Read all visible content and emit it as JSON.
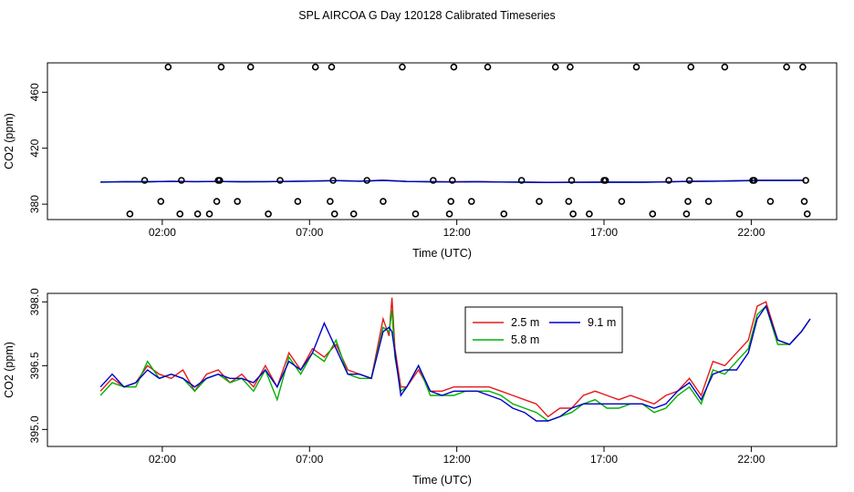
{
  "title": "SPL AIRCOA G  Day 120128  Calibrated Timeseries",
  "chart_data": [
    {
      "type": "line",
      "panel": "top",
      "xlabel": "Time (UTC)",
      "ylabel": "CO2 (ppm)",
      "xlim": [
        -1.9,
        24.9
      ],
      "ylim": [
        369,
        481
      ],
      "x_ticks": [
        2,
        7,
        12,
        17,
        22
      ],
      "x_tick_labels": [
        "02:00",
        "07:00",
        "12:00",
        "17:00",
        "22:00"
      ],
      "y_ticks": [
        380,
        420,
        460
      ],
      "y_tick_labels": [
        "380",
        "420",
        "460"
      ],
      "series": [
        {
          "name": "2.5 m",
          "color": "#e41a1c",
          "x": [
            -0.1,
            0.7,
            1.5,
            2.3,
            3.1,
            3.9,
            4.7,
            5.5,
            6.3,
            7.1,
            7.9,
            8.7,
            9.5,
            10.3,
            11.1,
            11.9,
            12.7,
            13.5,
            14.3,
            15.1,
            15.9,
            16.7,
            17.5,
            18.3,
            19.1,
            19.9,
            20.7,
            21.5,
            22.3,
            23.1,
            23.8
          ],
          "y": [
            395.8,
            396.1,
            396.0,
            396.4,
            396.2,
            396.3,
            396.1,
            396.2,
            396.3,
            396.6,
            396.9,
            396.5,
            397.2,
            396.3,
            396.1,
            396.0,
            396.2,
            395.9,
            395.8,
            395.6,
            395.7,
            395.8,
            395.9,
            395.8,
            396.0,
            396.4,
            396.5,
            396.8,
            397.0,
            397.1,
            397.0
          ]
        },
        {
          "name": "5.8 m",
          "color": "#00b000",
          "x": [
            -0.1,
            0.7,
            1.5,
            2.3,
            3.1,
            3.9,
            4.7,
            5.5,
            6.3,
            7.1,
            7.9,
            8.7,
            9.5,
            10.3,
            11.1,
            11.9,
            12.7,
            13.5,
            14.3,
            15.1,
            15.9,
            16.7,
            17.5,
            18.3,
            19.1,
            19.9,
            20.7,
            21.5,
            22.3,
            23.1,
            23.8
          ],
          "y": [
            395.7,
            396.0,
            396.0,
            396.3,
            396.1,
            396.2,
            396.0,
            396.1,
            396.2,
            396.5,
            396.8,
            396.4,
            397.0,
            396.2,
            396.0,
            395.9,
            396.0,
            395.8,
            395.7,
            395.5,
            395.6,
            395.7,
            395.7,
            395.7,
            395.9,
            396.3,
            396.4,
            396.7,
            396.9,
            397.0,
            397.0
          ]
        },
        {
          "name": "9.1 m",
          "color": "#0000cc",
          "x": [
            -0.1,
            0.7,
            1.5,
            2.3,
            3.1,
            3.9,
            4.7,
            5.5,
            6.3,
            7.1,
            7.9,
            8.7,
            9.5,
            10.3,
            11.1,
            11.9,
            12.7,
            13.5,
            14.3,
            15.1,
            15.9,
            16.7,
            17.5,
            18.3,
            19.1,
            19.9,
            20.7,
            21.5,
            22.3,
            23.1,
            23.8
          ],
          "y": [
            395.8,
            396.0,
            396.0,
            396.3,
            396.1,
            396.2,
            396.0,
            396.1,
            396.3,
            396.5,
            396.9,
            396.4,
            397.0,
            396.2,
            396.0,
            395.9,
            396.0,
            395.8,
            395.7,
            395.5,
            395.6,
            395.7,
            395.7,
            395.7,
            395.9,
            396.3,
            396.4,
            396.7,
            397.1,
            397.0,
            397.1
          ]
        }
      ],
      "markers": {
        "symbol": "open-circle",
        "x": [
          0.9,
          1.4,
          1.95,
          2.2,
          2.6,
          2.65,
          3.2,
          3.6,
          3.85,
          3.9,
          3.95,
          4.0,
          4.55,
          5.0,
          5.6,
          6.0,
          6.6,
          7.2,
          7.7,
          7.75,
          7.8,
          7.85,
          8.5,
          8.95,
          9.5,
          10.15,
          10.6,
          11.2,
          11.75,
          11.8,
          11.85,
          11.9,
          12.5,
          13.05,
          13.6,
          14.2,
          14.8,
          15.35,
          15.8,
          15.85,
          15.9,
          15.95,
          16.5,
          17.0,
          17.05,
          17.6,
          18.1,
          18.65,
          19.2,
          19.8,
          19.85,
          19.9,
          19.95,
          20.55,
          21.1,
          21.6,
          22.05,
          22.1,
          22.65,
          23.2,
          23.75,
          23.8,
          23.85,
          23.9
        ],
        "y": [
          373,
          397,
          382,
          478,
          373,
          397,
          373,
          373,
          382,
          397,
          397,
          478,
          382,
          478,
          373,
          397,
          382,
          478,
          382,
          478,
          397,
          373,
          373,
          397,
          382,
          478,
          373,
          397,
          373,
          382,
          397,
          478,
          382,
          478,
          373,
          397,
          382,
          478,
          382,
          478,
          397,
          373,
          373,
          397,
          397,
          382,
          478,
          373,
          397,
          373,
          382,
          397,
          478,
          382,
          478,
          373,
          397,
          397,
          382,
          478,
          478,
          382,
          397,
          373
        ]
      }
    },
    {
      "type": "line",
      "panel": "bottom",
      "xlabel": "Time (UTC)",
      "ylabel": "CO2 (ppm)",
      "xlim": [
        -1.9,
        24.9
      ],
      "ylim": [
        394.6,
        398.2
      ],
      "x_ticks": [
        2,
        7,
        12,
        17,
        22
      ],
      "x_tick_labels": [
        "02:00",
        "07:00",
        "12:00",
        "17:00",
        "22:00"
      ],
      "y_ticks": [
        395.0,
        396.5,
        398.0
      ],
      "y_tick_labels": [
        "395.0",
        "396.5",
        "398.0"
      ],
      "legend": {
        "placement": "top-center",
        "ncol": 2
      },
      "series": [
        {
          "name": "2.5 m",
          "color": "#e41a1c",
          "x": [
            -0.1,
            0.3,
            0.7,
            1.1,
            1.5,
            1.9,
            2.3,
            2.7,
            3.1,
            3.5,
            3.9,
            4.3,
            4.7,
            5.1,
            5.5,
            5.9,
            6.3,
            6.7,
            7.1,
            7.5,
            7.9,
            8.3,
            8.7,
            9.1,
            9.5,
            9.7,
            9.8,
            9.9,
            10.1,
            10.3,
            10.7,
            11.1,
            11.5,
            11.9,
            12.3,
            12.7,
            13.1,
            13.5,
            13.9,
            14.3,
            14.7,
            15.1,
            15.5,
            15.9,
            16.3,
            16.7,
            17.1,
            17.5,
            17.9,
            18.3,
            18.7,
            19.1,
            19.5,
            19.9,
            20.3,
            20.7,
            21.1,
            21.5,
            21.9,
            22.2,
            22.5,
            22.9,
            23.3,
            23.7,
            24.0
          ],
          "y": [
            395.9,
            396.2,
            396.0,
            396.1,
            396.5,
            396.3,
            396.2,
            396.4,
            395.9,
            396.3,
            396.4,
            396.1,
            396.3,
            396.0,
            396.5,
            396.0,
            396.8,
            396.4,
            396.9,
            396.7,
            397.0,
            396.4,
            396.3,
            396.2,
            397.6,
            397.2,
            398.1,
            396.9,
            396.0,
            396.0,
            396.4,
            395.9,
            395.9,
            396.0,
            396.0,
            396.0,
            396.0,
            395.9,
            395.8,
            395.7,
            395.6,
            395.3,
            395.5,
            395.5,
            395.8,
            395.9,
            395.8,
            395.7,
            395.8,
            395.7,
            395.6,
            395.8,
            395.9,
            396.2,
            395.8,
            396.6,
            396.5,
            396.8,
            397.1,
            397.9,
            398.0,
            397.1,
            397.0,
            397.3,
            397.6
          ]
        },
        {
          "name": "5.8 m",
          "color": "#00b000",
          "x": [
            -0.1,
            0.3,
            0.7,
            1.1,
            1.5,
            1.9,
            2.3,
            2.7,
            3.1,
            3.5,
            3.9,
            4.3,
            4.7,
            5.1,
            5.5,
            5.9,
            6.3,
            6.7,
            7.1,
            7.5,
            7.9,
            8.3,
            8.7,
            9.1,
            9.5,
            9.7,
            9.8,
            9.9,
            10.1,
            10.3,
            10.7,
            11.1,
            11.5,
            11.9,
            12.3,
            12.7,
            13.1,
            13.5,
            13.9,
            14.3,
            14.7,
            15.1,
            15.5,
            15.9,
            16.3,
            16.7,
            17.1,
            17.5,
            17.9,
            18.3,
            18.7,
            19.1,
            19.5,
            19.9,
            20.3,
            20.7,
            21.1,
            21.5,
            21.9,
            22.2,
            22.5,
            22.9,
            23.3,
            23.7,
            24.0
          ],
          "y": [
            395.8,
            396.1,
            396.0,
            396.0,
            396.6,
            396.2,
            396.3,
            396.2,
            395.9,
            396.2,
            396.3,
            396.1,
            396.2,
            395.9,
            396.4,
            395.7,
            396.7,
            396.3,
            396.8,
            396.6,
            397.1,
            396.3,
            396.2,
            396.2,
            397.4,
            397.3,
            397.8,
            396.7,
            395.9,
            396.0,
            396.5,
            395.8,
            395.8,
            395.8,
            395.9,
            395.9,
            395.9,
            395.8,
            395.6,
            395.5,
            395.4,
            395.2,
            395.3,
            395.4,
            395.6,
            395.7,
            395.5,
            395.5,
            395.6,
            395.6,
            395.4,
            395.5,
            395.8,
            396.0,
            395.6,
            396.4,
            396.3,
            396.6,
            396.9,
            397.7,
            397.9,
            397.0,
            397.0,
            397.3,
            397.6
          ]
        },
        {
          "name": "9.1 m",
          "color": "#0000cc",
          "x": [
            -0.1,
            0.3,
            0.7,
            1.1,
            1.5,
            1.9,
            2.3,
            2.7,
            3.1,
            3.5,
            3.9,
            4.3,
            4.7,
            5.1,
            5.5,
            5.9,
            6.3,
            6.7,
            7.1,
            7.5,
            7.9,
            8.3,
            8.7,
            9.1,
            9.5,
            9.7,
            9.8,
            9.9,
            10.1,
            10.3,
            10.7,
            11.1,
            11.5,
            11.9,
            12.3,
            12.7,
            13.1,
            13.5,
            13.9,
            14.3,
            14.7,
            15.1,
            15.5,
            15.9,
            16.3,
            16.7,
            17.1,
            17.5,
            17.9,
            18.3,
            18.7,
            19.1,
            19.5,
            19.9,
            20.3,
            20.7,
            21.1,
            21.5,
            21.9,
            22.2,
            22.5,
            22.9,
            23.3,
            23.7,
            24.0
          ],
          "y": [
            396.0,
            396.3,
            396.0,
            396.1,
            396.4,
            396.2,
            396.3,
            396.2,
            396.0,
            396.2,
            396.3,
            396.2,
            396.2,
            396.1,
            396.4,
            396.0,
            396.6,
            396.4,
            396.8,
            397.5,
            396.9,
            396.3,
            396.3,
            396.2,
            397.3,
            397.4,
            397.3,
            396.8,
            395.8,
            396.0,
            396.5,
            395.9,
            395.8,
            395.9,
            395.9,
            395.9,
            395.8,
            395.7,
            395.5,
            395.4,
            395.2,
            395.2,
            395.3,
            395.5,
            395.6,
            395.6,
            395.6,
            395.6,
            395.6,
            395.6,
            395.5,
            395.6,
            395.9,
            396.1,
            395.7,
            396.3,
            396.4,
            396.4,
            396.8,
            397.6,
            397.9,
            397.1,
            397.0,
            397.3,
            397.6
          ]
        }
      ]
    }
  ]
}
